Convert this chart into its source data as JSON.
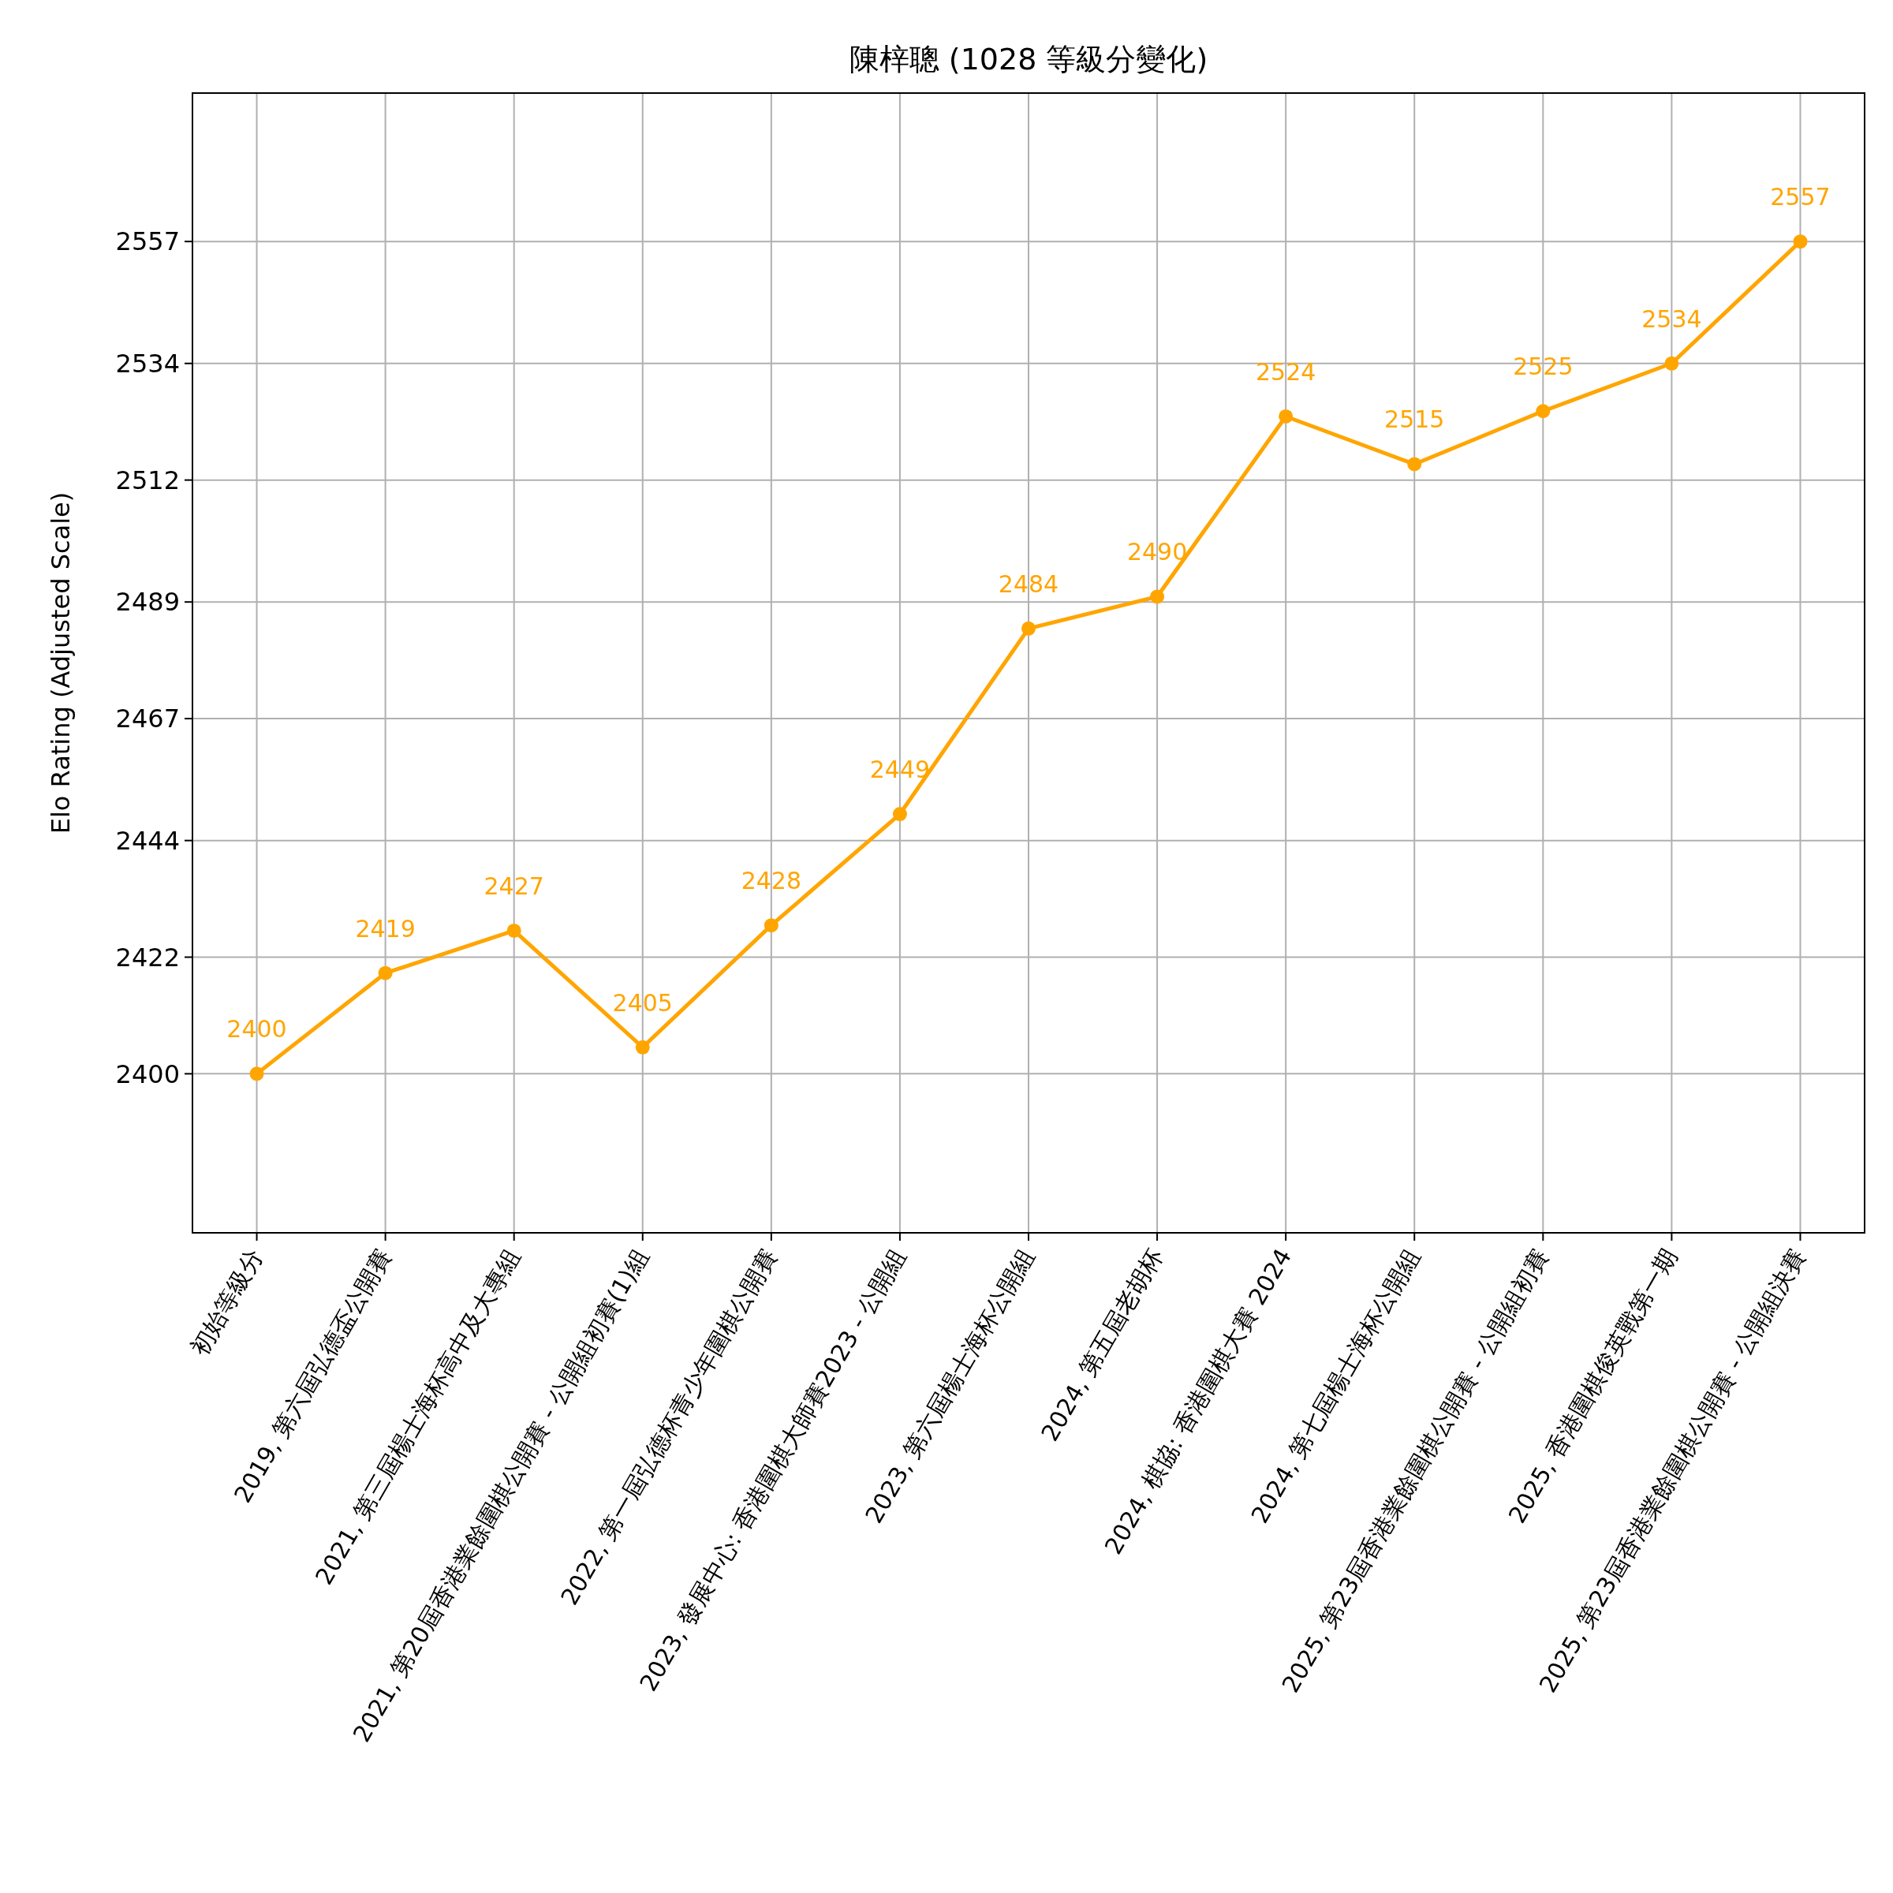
{
  "chart_data": {
    "type": "line",
    "title": "陳梓聰 (1028 等級分變化)",
    "ylabel": "Elo Rating (Adjusted Scale)",
    "categories": [
      "初始等級分",
      "2019, 第六屆弘德盃公開賽",
      "2021, 第三屆楊士海杯高中及大專組",
      "2021, 第20屆香港業餘圍棋公開賽 - 公開組初賽(1)組",
      "2022, 第一屆弘德杯青少年圍棋公開賽",
      "2023, 發展中心: 香港圍棋大師賽2023 - 公開組",
      "2023, 第六屆楊士海杯公開組",
      "2024, 第五屆老胡杯",
      "2024, 棋協: 香港圍棋大賽 2024",
      "2024, 第七屆楊士海杯公開組",
      "2025, 第23屆香港業餘圍棋公開賽 - 公開組初賽",
      "2025, 香港圍棋俊英戰第一期",
      "2025, 第23屆香港業餘圍棋公開賽 - 公開組決賽"
    ],
    "series": [
      {
        "color": "#ffa500",
        "values": [
          2400,
          2419,
          2427,
          2405,
          2428,
          2449,
          2484,
          2490,
          2524,
          2515,
          2525,
          2534,
          2557
        ]
      }
    ],
    "ylim": [
      2370,
      2585
    ],
    "yticks": [
      2400,
      2422,
      2444,
      2467,
      2489,
      2512,
      2534,
      2557
    ],
    "grid": true,
    "marker": "circle",
    "line_style": "solid",
    "data_labels": true
  }
}
